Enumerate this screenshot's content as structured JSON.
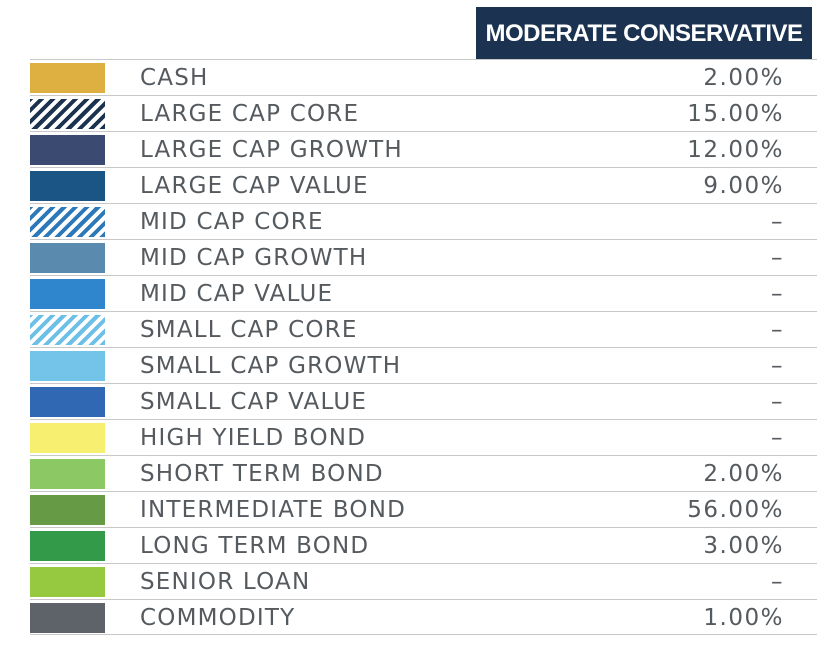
{
  "chart_data": {
    "type": "table",
    "column_header": "MODERATE CONSERVATIVE",
    "rows": [
      {
        "label": "CASH",
        "value": "2.00%",
        "color": "#deb041",
        "pattern": "solid"
      },
      {
        "label": "LARGE CAP CORE",
        "value": "15.00%",
        "color": "#1b3350",
        "pattern": "hatch"
      },
      {
        "label": "LARGE CAP GROWTH",
        "value": "12.00%",
        "color": "#3a4a70",
        "pattern": "solid"
      },
      {
        "label": "LARGE CAP VALUE",
        "value": "9.00%",
        "color": "#1a5585",
        "pattern": "solid"
      },
      {
        "label": "MID CAP CORE",
        "value": "–",
        "color": "#2d78b8",
        "pattern": "hatch"
      },
      {
        "label": "MID CAP GROWTH",
        "value": "–",
        "color": "#5a8aad",
        "pattern": "solid"
      },
      {
        "label": "MID CAP VALUE",
        "value": "–",
        "color": "#2f86cc",
        "pattern": "solid"
      },
      {
        "label": "SMALL CAP CORE",
        "value": "–",
        "color": "#6cbfe6",
        "pattern": "hatch"
      },
      {
        "label": "SMALL CAP GROWTH",
        "value": "–",
        "color": "#74c4ea",
        "pattern": "solid"
      },
      {
        "label": "SMALL CAP VALUE",
        "value": "–",
        "color": "#3168b4",
        "pattern": "solid"
      },
      {
        "label": "HIGH YIELD BOND",
        "value": "–",
        "color": "#f6ef70",
        "pattern": "solid"
      },
      {
        "label": "SHORT TERM BOND",
        "value": "2.00%",
        "color": "#8cc864",
        "pattern": "solid"
      },
      {
        "label": "INTERMEDIATE BOND",
        "value": "56.00%",
        "color": "#679a45",
        "pattern": "solid"
      },
      {
        "label": "LONG TERM BOND",
        "value": "3.00%",
        "color": "#329a48",
        "pattern": "solid"
      },
      {
        "label": "SENIOR LOAN",
        "value": "–",
        "color": "#96c840",
        "pattern": "solid"
      },
      {
        "label": "COMMODITY",
        "value": "1.00%",
        "color": "#5e636a",
        "pattern": "solid"
      }
    ]
  }
}
